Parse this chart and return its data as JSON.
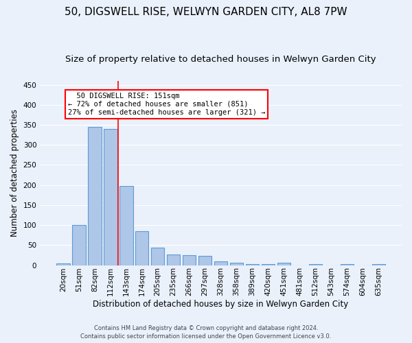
{
  "title": "50, DIGSWELL RISE, WELWYN GARDEN CITY, AL8 7PW",
  "subtitle": "Size of property relative to detached houses in Welwyn Garden City",
  "xlabel": "Distribution of detached houses by size in Welwyn Garden City",
  "ylabel": "Number of detached properties",
  "footnote1": "Contains HM Land Registry data © Crown copyright and database right 2024.",
  "footnote2": "Contains public sector information licensed under the Open Government Licence v3.0.",
  "categories": [
    "20sqm",
    "51sqm",
    "82sqm",
    "112sqm",
    "143sqm",
    "174sqm",
    "205sqm",
    "235sqm",
    "266sqm",
    "297sqm",
    "328sqm",
    "358sqm",
    "389sqm",
    "420sqm",
    "451sqm",
    "481sqm",
    "512sqm",
    "543sqm",
    "574sqm",
    "604sqm",
    "635sqm"
  ],
  "values": [
    5,
    100,
    345,
    340,
    197,
    85,
    44,
    27,
    25,
    24,
    10,
    6,
    3,
    3,
    6,
    0,
    3,
    0,
    3,
    0,
    3
  ],
  "bar_color": "#aec6e8",
  "bar_edge_color": "#5b9bd5",
  "vline_x": 3.5,
  "vline_color": "red",
  "annotation_text": "  50 DIGSWELL RISE: 151sqm  \n← 72% of detached houses are smaller (851)\n27% of semi-detached houses are larger (321) →",
  "annotation_box_color": "white",
  "annotation_box_edgecolor": "red",
  "ylim": [
    0,
    460
  ],
  "background_color": "#eaf1fb",
  "grid_color": "white",
  "title_fontsize": 11,
  "subtitle_fontsize": 9.5,
  "axis_label_fontsize": 8.5,
  "tick_fontsize": 7.5,
  "annotation_fontsize": 7.5
}
